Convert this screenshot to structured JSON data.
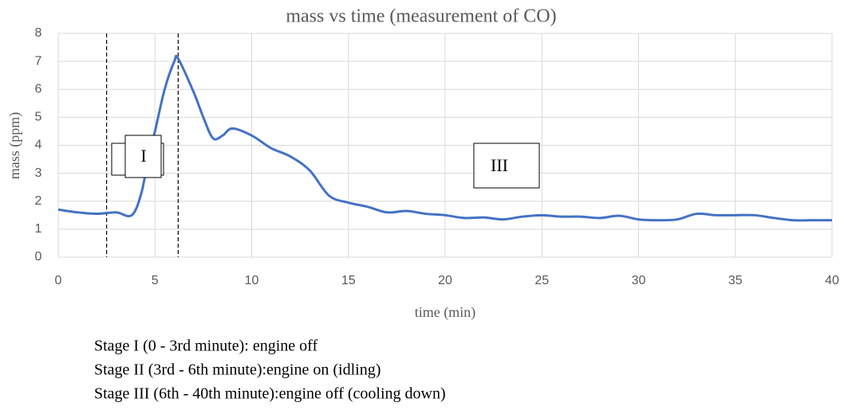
{
  "chart_data": {
    "type": "line",
    "title": "mass vs time (measurement of CO)",
    "x_label": "time (min)",
    "y_label": "mass (ppm)",
    "x": [
      0,
      1,
      2,
      3,
      3.8,
      4.3,
      4.7,
      5,
      5.5,
      6,
      6.2,
      7,
      7.5,
      8,
      8.5,
      9,
      10,
      11,
      12,
      13,
      14,
      15,
      16,
      17,
      18,
      19,
      20,
      21,
      22,
      23,
      24,
      25,
      26,
      27,
      28,
      29,
      30,
      31,
      32,
      33,
      34,
      35,
      36,
      37,
      38,
      39,
      40
    ],
    "series": [
      {
        "name": "mass",
        "color": "#4472c4",
        "values": [
          1.7,
          1.6,
          1.55,
          1.6,
          1.5,
          2.3,
          3.7,
          4.5,
          6.0,
          7.0,
          7.1,
          5.9,
          5.0,
          4.25,
          4.35,
          4.6,
          4.35,
          3.9,
          3.6,
          3.1,
          2.2,
          1.95,
          1.8,
          1.6,
          1.65,
          1.55,
          1.5,
          1.4,
          1.42,
          1.35,
          1.45,
          1.5,
          1.45,
          1.45,
          1.4,
          1.48,
          1.35,
          1.32,
          1.35,
          1.55,
          1.5,
          1.5,
          1.5,
          1.4,
          1.32,
          1.32,
          1.32
        ]
      }
    ],
    "xlim": [
      0,
      40
    ],
    "xticks": [
      0,
      5,
      10,
      15,
      20,
      25,
      30,
      35,
      40
    ],
    "ylim": [
      0,
      8
    ],
    "yticks": [
      0,
      1,
      2,
      3,
      4,
      5,
      6,
      7,
      8
    ],
    "grid": true,
    "vlines": [
      2.5,
      6.2
    ],
    "annotations": [
      "I",
      "III"
    ],
    "notes": [
      "Stage I (0 -  3rd minute): engine off",
      "Stage II (3rd - 6th minute):engine on (idling)",
      "Stage III (6th - 40th minute):engine off (cooling down)"
    ]
  }
}
